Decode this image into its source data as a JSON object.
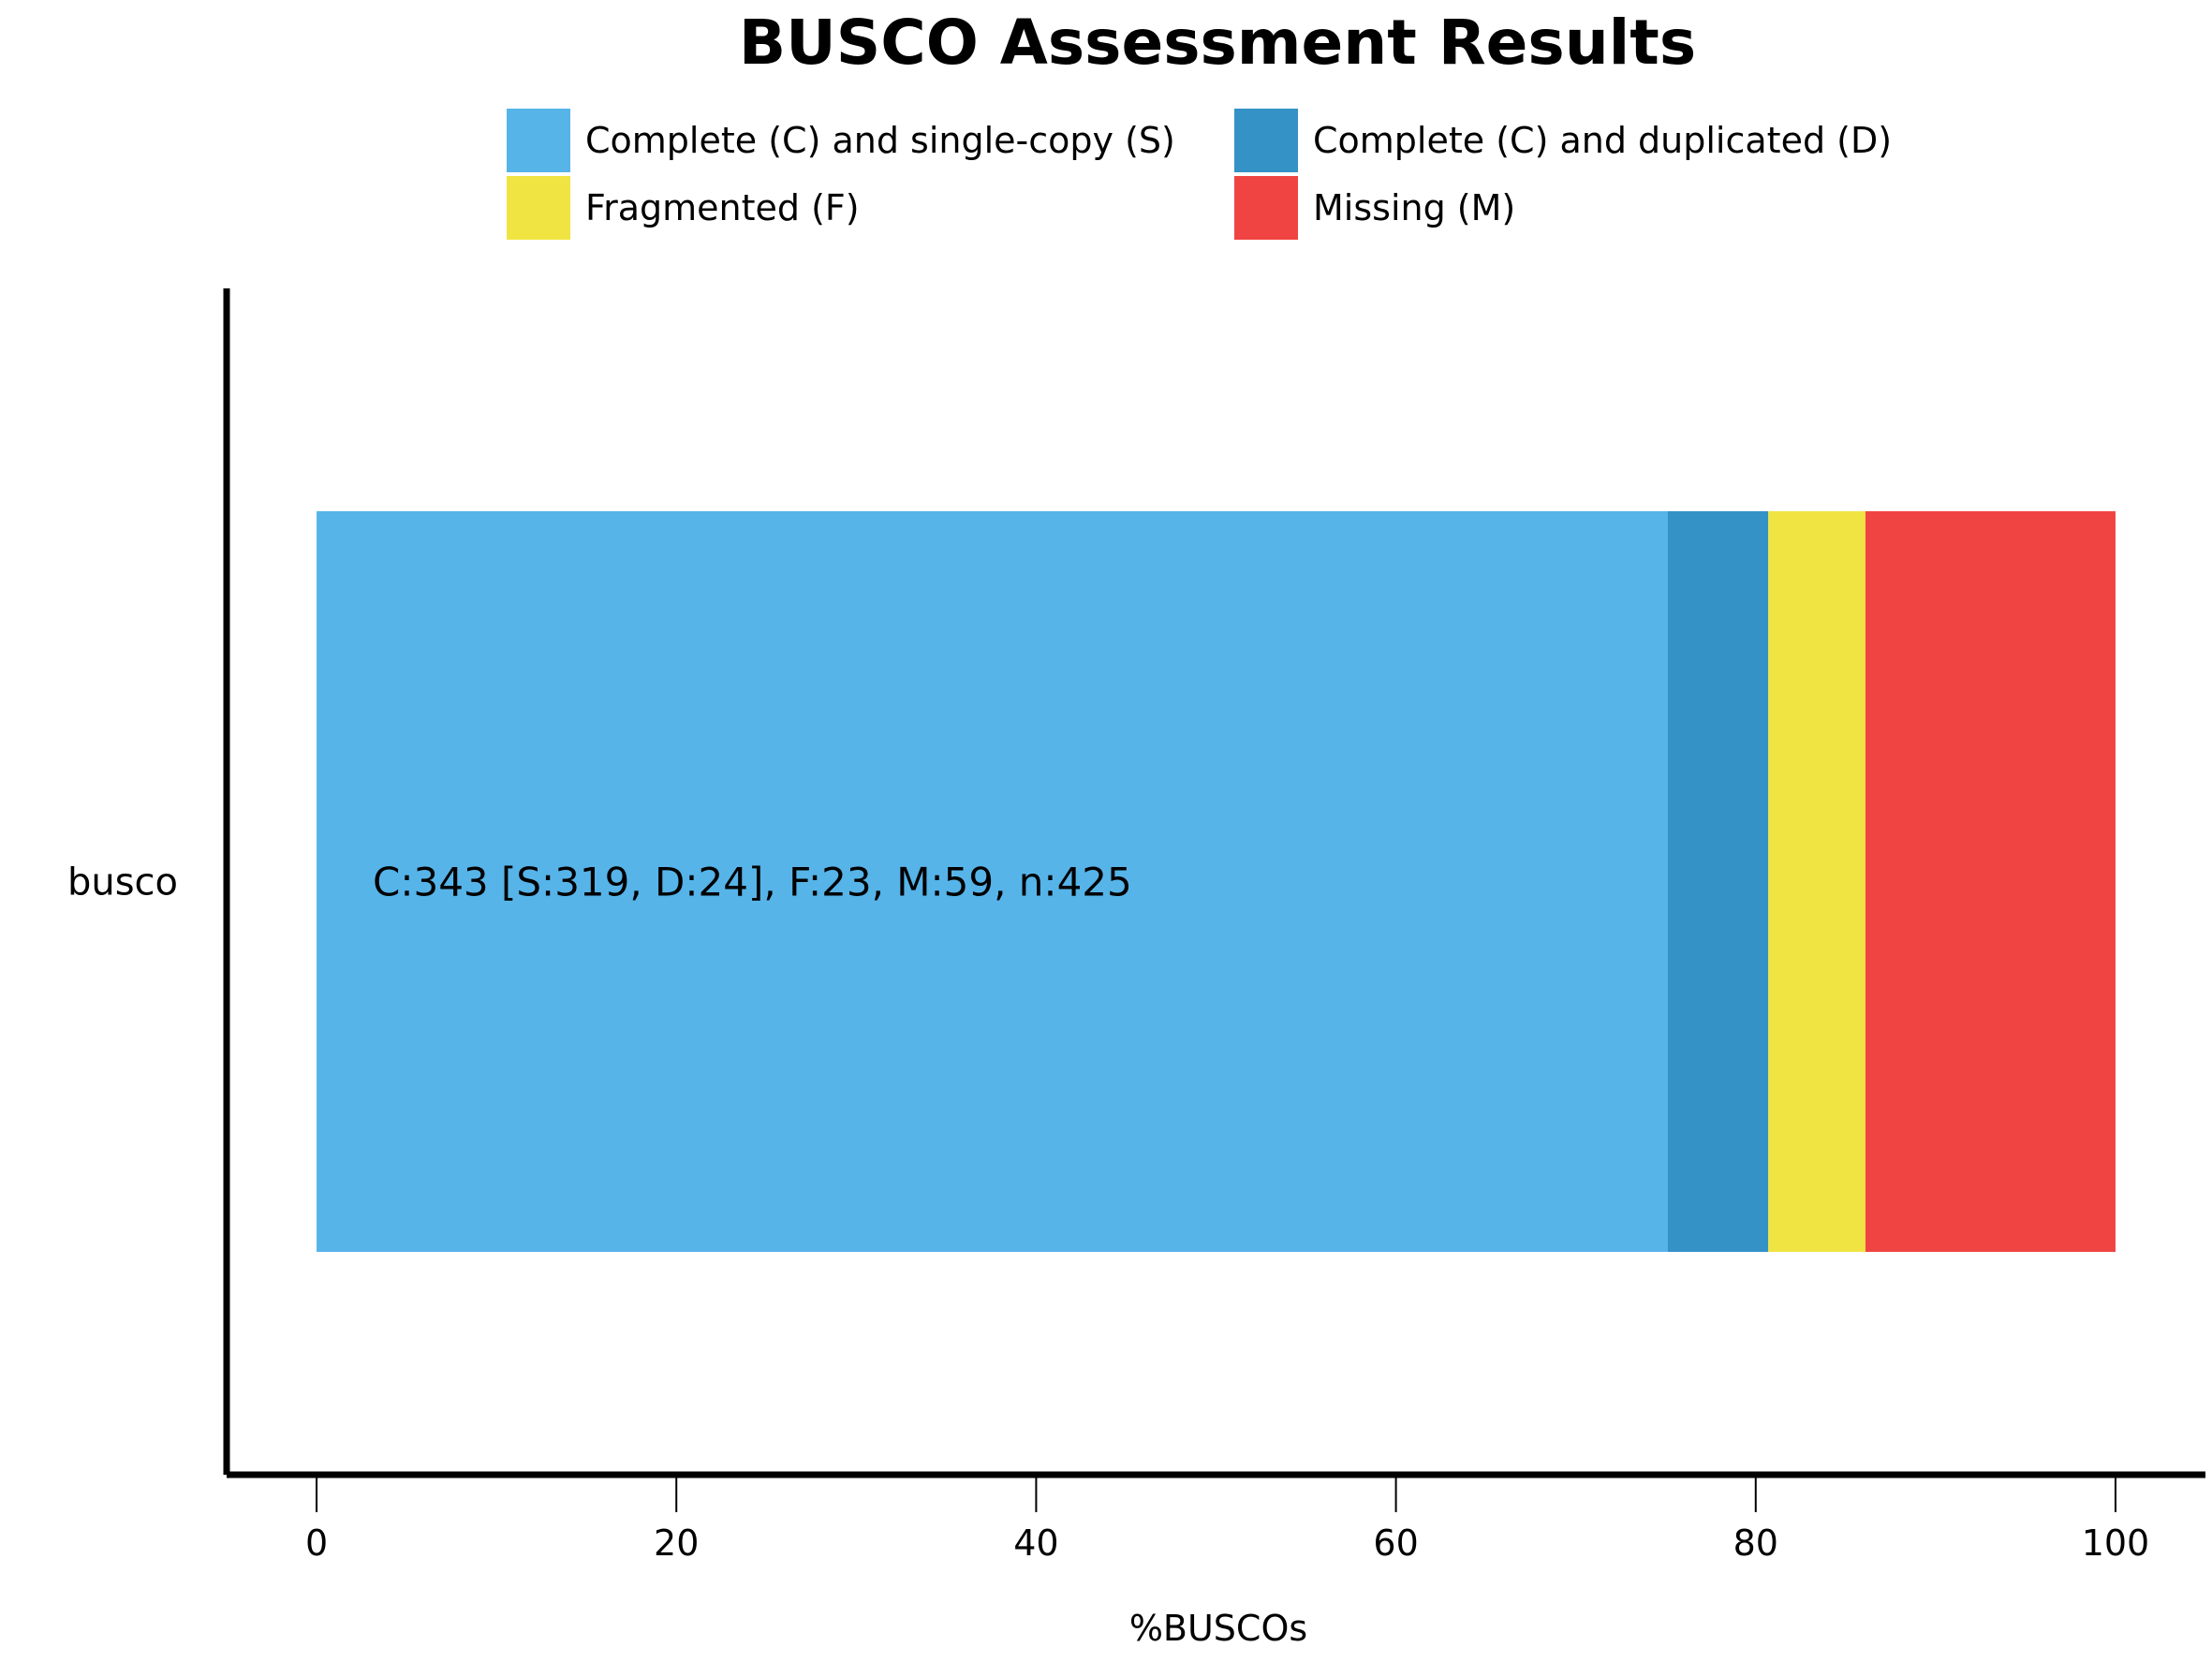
{
  "chart_data": {
    "type": "bar",
    "orientation": "horizontal",
    "stacked": true,
    "title": "BUSCO Assessment Results",
    "xlabel": "%BUSCOs",
    "ylabel": "",
    "xlim": [
      -5,
      105
    ],
    "xticks": [
      0,
      20,
      40,
      60,
      80,
      100
    ],
    "categories": [
      "busco"
    ],
    "series": [
      {
        "name": "Complete (C) and single-copy (S)",
        "values": [
          75.1
        ],
        "color": "#56B4E9"
      },
      {
        "name": "Complete (C) and duplicated (D)",
        "values": [
          5.6
        ],
        "color": "#3492C7"
      },
      {
        "name": "Fragmented (F)",
        "values": [
          5.4
        ],
        "color": "#F0E442"
      },
      {
        "name": "Missing (M)",
        "values": [
          13.9
        ],
        "color": "#F04442"
      }
    ],
    "annotations": [
      "C:343 [S:319, D:24], F:23, M:59, n:425"
    ],
    "legend": {
      "placement": "top-center",
      "columns": 2
    },
    "grid": false
  }
}
